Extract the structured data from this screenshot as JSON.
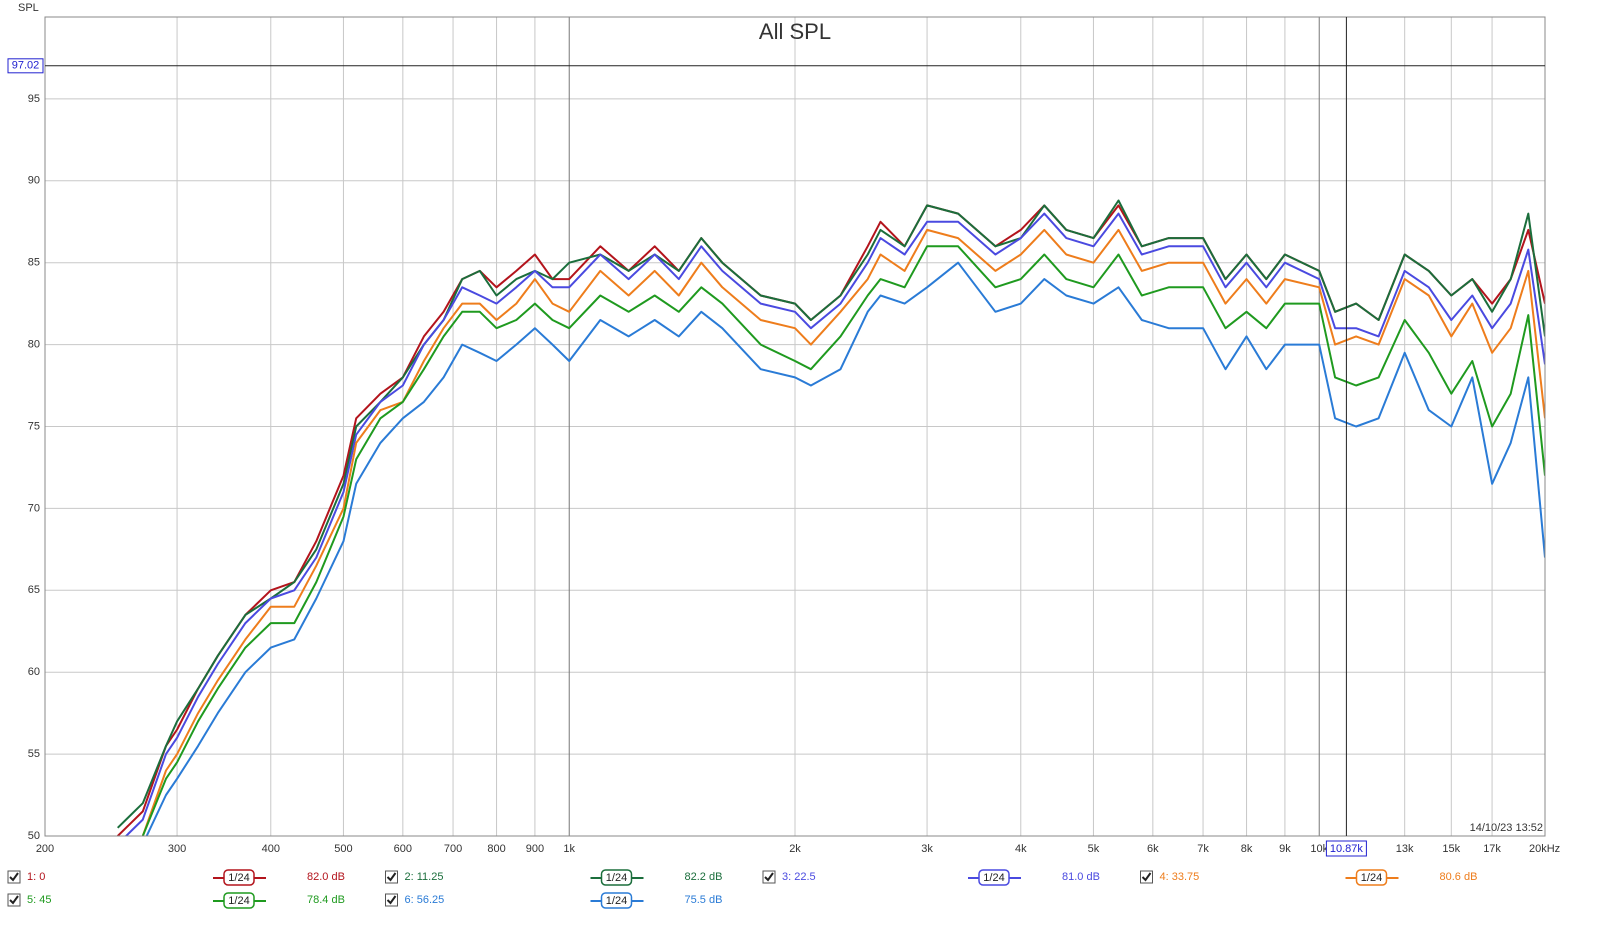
{
  "chart_data": {
    "type": "line",
    "title": "All SPL",
    "y_label": "SPL",
    "timestamp": "14/10/23 13:52",
    "xscale": "log",
    "xlim": [
      200,
      20000
    ],
    "ylim": [
      50,
      100
    ],
    "xticks": [
      200,
      300,
      400,
      500,
      600,
      700,
      800,
      900,
      {
        "value": 1000,
        "label": "1k"
      },
      {
        "value": 2000,
        "label": "2k"
      },
      {
        "value": 3000,
        "label": "3k"
      },
      {
        "value": 4000,
        "label": "4k"
      },
      {
        "value": 5000,
        "label": "5k"
      },
      {
        "value": 6000,
        "label": "6k"
      },
      {
        "value": 7000,
        "label": "7k"
      },
      {
        "value": 8000,
        "label": "8k"
      },
      {
        "value": 9000,
        "label": "9k"
      },
      {
        "value": 10000,
        "label": "10k"
      },
      {
        "value": 13000,
        "label": "13k"
      },
      {
        "value": 15000,
        "label": "15k"
      },
      {
        "value": 17000,
        "label": "17k"
      },
      {
        "value": 20000,
        "label": "20kHz"
      }
    ],
    "yticks": [
      50,
      55,
      60,
      65,
      70,
      75,
      80,
      85,
      90,
      95
    ],
    "grid": true,
    "cursor": {
      "x": {
        "value": 10870,
        "label": "10.87k"
      },
      "y": 97.02
    },
    "x": [
      250,
      270,
      290,
      300,
      320,
      340,
      370,
      400,
      430,
      460,
      500,
      520,
      560,
      600,
      640,
      680,
      720,
      760,
      800,
      850,
      900,
      950,
      1000,
      1100,
      1200,
      1300,
      1400,
      1500,
      1600,
      1800,
      2000,
      2100,
      2300,
      2500,
      2600,
      2800,
      3000,
      3300,
      3700,
      4000,
      4300,
      4600,
      5000,
      5400,
      5800,
      6300,
      7000,
      7500,
      8000,
      8500,
      9000,
      10000,
      10500,
      11200,
      12000,
      13000,
      14000,
      15000,
      16000,
      17000,
      18000,
      19000,
      20000
    ],
    "series": [
      {
        "name": "1: 0",
        "color": "#b3141c",
        "smoothing": "1/24",
        "cursor_value": 82.0,
        "cursor_value_label": "82.0 dB",
        "values": [
          50,
          51.5,
          55.5,
          56.5,
          59,
          61,
          63.5,
          65,
          65.5,
          68,
          72,
          75.5,
          77,
          78,
          80.5,
          82,
          84,
          84.5,
          83.5,
          84.5,
          85.5,
          84,
          84,
          86,
          84.5,
          86,
          84.5,
          86.5,
          85,
          83,
          82.5,
          81.5,
          83,
          86,
          87.5,
          86,
          88.5,
          88,
          86,
          87,
          88.5,
          87,
          86.5,
          88.5,
          86,
          86.5,
          86.5,
          84,
          85.5,
          84,
          85.5,
          84.5,
          82,
          82.5,
          81.5,
          85.5,
          84.5,
          83,
          84,
          82.5,
          84,
          87,
          82.5
        ]
      },
      {
        "name": "2: 11.25",
        "color": "#1b6e3c",
        "smoothing": "1/24",
        "cursor_value": 82.2,
        "cursor_value_label": "82.2 dB",
        "values": [
          50.5,
          52,
          55.5,
          57,
          59,
          61,
          63.5,
          64.5,
          65.5,
          67.5,
          71.5,
          75,
          76.5,
          78,
          80,
          81.5,
          84,
          84.5,
          83,
          84,
          84.5,
          84,
          85,
          85.5,
          84.5,
          85.5,
          84.5,
          86.5,
          85,
          83,
          82.5,
          81.5,
          83,
          85.5,
          87,
          86,
          88.5,
          88,
          86,
          86.5,
          88.5,
          87,
          86.5,
          88.8,
          86,
          86.5,
          86.5,
          84,
          85.5,
          84,
          85.5,
          84.5,
          82,
          82.5,
          81.5,
          85.5,
          84.5,
          83,
          84,
          82,
          84,
          88,
          80.5
        ]
      },
      {
        "name": "3: 22.5",
        "color": "#4a4ae0",
        "smoothing": "1/24",
        "cursor_value": 81.0,
        "cursor_value_label": "81.0 dB",
        "values": [
          49.5,
          51,
          55,
          56,
          58.5,
          60.5,
          63,
          64.5,
          65,
          67,
          71,
          74.5,
          76.5,
          77.5,
          80,
          81.5,
          83.5,
          83,
          82.5,
          83.5,
          84.5,
          83.5,
          83.5,
          85.5,
          84,
          85.5,
          84,
          86,
          84.5,
          82.5,
          82,
          81,
          82.5,
          85,
          86.5,
          85.5,
          87.5,
          87.5,
          85.5,
          86.5,
          88,
          86.5,
          86,
          88,
          85.5,
          86,
          86,
          83.5,
          85,
          83.5,
          85,
          84,
          81,
          81,
          80.5,
          84.5,
          83.5,
          81.5,
          83,
          81,
          82.5,
          85.8,
          78.8
        ]
      },
      {
        "name": "4: 33.75",
        "color": "#ee7d1c",
        "smoothing": "1/24",
        "cursor_value": 80.6,
        "cursor_value_label": "80.6 dB",
        "values": [
          49,
          50,
          54,
          55,
          57.5,
          59.5,
          62,
          64,
          64,
          66.5,
          70,
          74,
          76,
          76.5,
          79,
          81,
          82.5,
          82.5,
          81.5,
          82.5,
          84,
          82.5,
          82,
          84.5,
          83,
          84.5,
          83,
          85,
          83.5,
          81.5,
          81,
          80,
          82,
          84,
          85.5,
          84.5,
          87,
          86.5,
          84.5,
          85.5,
          87,
          85.5,
          85,
          87,
          84.5,
          85,
          85,
          82.5,
          84,
          82.5,
          84,
          83.5,
          80,
          80.5,
          80,
          84,
          83,
          80.5,
          82.5,
          79.5,
          81,
          84.5,
          75.5
        ]
      },
      {
        "name": "5: 45",
        "color": "#1f9a1f",
        "smoothing": "1/24",
        "cursor_value": 78.4,
        "cursor_value_label": "78.4 dB",
        "values": [
          49,
          50,
          53.5,
          54.5,
          57,
          59,
          61.5,
          63,
          63,
          65.5,
          69.5,
          73,
          75.5,
          76.5,
          78.5,
          80.5,
          82,
          82,
          81,
          81.5,
          82.5,
          81.5,
          81,
          83,
          82,
          83,
          82,
          83.5,
          82.5,
          80,
          79,
          78.5,
          80.5,
          83,
          84,
          83.5,
          86,
          86,
          83.5,
          84,
          85.5,
          84,
          83.5,
          85.5,
          83,
          83.5,
          83.5,
          81,
          82,
          81,
          82.5,
          82.5,
          78,
          77.5,
          78,
          81.5,
          79.5,
          77,
          79,
          75,
          77,
          81.8,
          72
        ]
      },
      {
        "name": "6: 56.25",
        "color": "#2a7bd6",
        "smoothing": "1/24",
        "cursor_value": 75.5,
        "cursor_value_label": "75.5 dB",
        "values": [
          48.5,
          49.5,
          52.5,
          53.5,
          55.5,
          57.5,
          60,
          61.5,
          62,
          64.5,
          68,
          71.5,
          74,
          75.5,
          76.5,
          78,
          80,
          79.5,
          79,
          80,
          81,
          80,
          79,
          81.5,
          80.5,
          81.5,
          80.5,
          82,
          81,
          78.5,
          78,
          77.5,
          78.5,
          82,
          83,
          82.5,
          83.5,
          85,
          82,
          82.5,
          84,
          83,
          82.5,
          83.5,
          81.5,
          81,
          81,
          78.5,
          80.5,
          78.5,
          80,
          80,
          75.5,
          75,
          75.5,
          79.5,
          76,
          75,
          78,
          71.5,
          74,
          78,
          67
        ]
      }
    ]
  }
}
